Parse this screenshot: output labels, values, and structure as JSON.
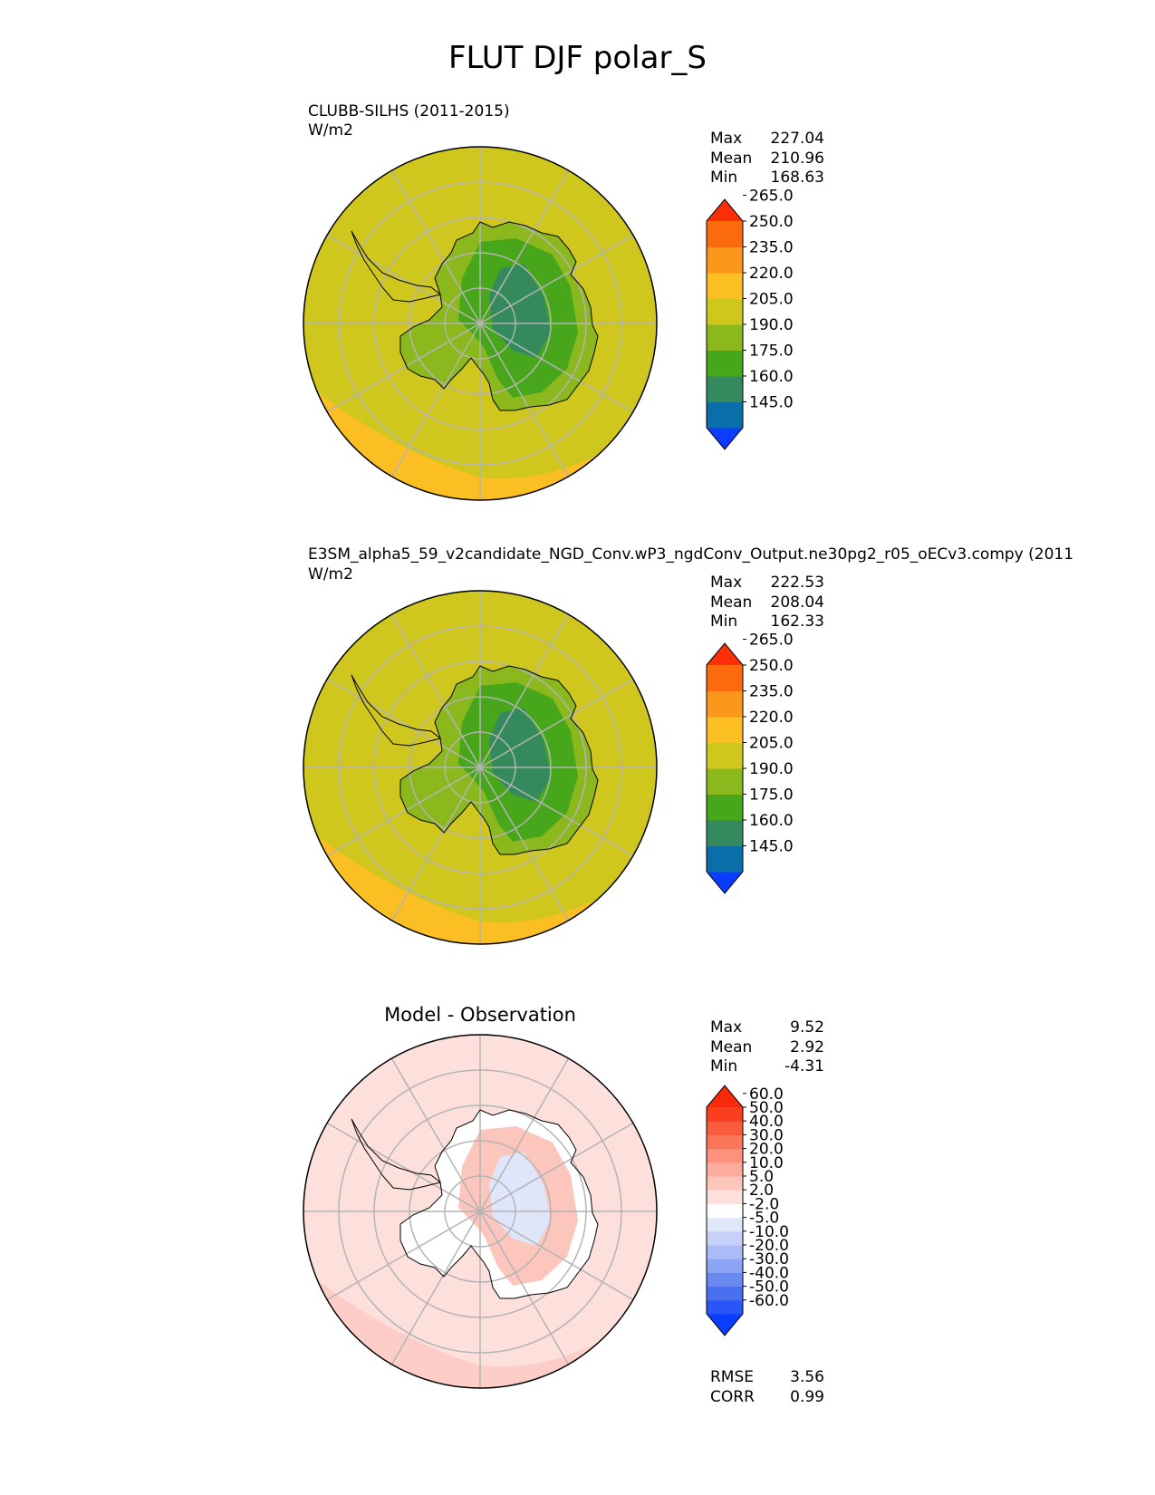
{
  "title": "FLUT DJF polar_S",
  "panels": [
    {
      "title": "CLUBB-SILHS (2011-2015)",
      "units": "W/m2",
      "stats": [
        [
          "Max",
          "227.04"
        ],
        [
          "Mean",
          "210.96"
        ],
        [
          "Min",
          "168.63"
        ]
      ],
      "colorbar": {
        "colors": [
          "#0a3dff",
          "#0a6ea8",
          "#348a5c",
          "#48a61a",
          "#8bb81c",
          "#cfc71e",
          "#fbbf23",
          "#fb971a",
          "#fb6a0d",
          "#fb3008"
        ],
        "labels": [
          "145.0",
          "160.0",
          "175.0",
          "190.0",
          "205.0",
          "220.0",
          "235.0",
          "250.0",
          "265.0"
        ]
      },
      "map": {
        "ocean_color": "#cfc71e",
        "warm_band_color": "#fbbf23",
        "inner_colors": [
          "#8bb81c",
          "#48a61a",
          "#348a5c"
        ]
      }
    },
    {
      "title": "E3SM_alpha5_59_v2candidate_NGD_Conv.wP3_ngdConv_Output.ne30pg2_r05_oECv3.compy (2011",
      "units": "W/m2",
      "stats": [
        [
          "Max",
          "222.53"
        ],
        [
          "Mean",
          "208.04"
        ],
        [
          "Min",
          "162.33"
        ]
      ],
      "colorbar": {
        "colors": [
          "#0a3dff",
          "#0a6ea8",
          "#348a5c",
          "#48a61a",
          "#8bb81c",
          "#cfc71e",
          "#fbbf23",
          "#fb971a",
          "#fb6a0d",
          "#fb3008"
        ],
        "labels": [
          "145.0",
          "160.0",
          "175.0",
          "190.0",
          "205.0",
          "220.0",
          "235.0",
          "250.0",
          "265.0"
        ]
      },
      "map": {
        "ocean_color": "#cfc71e",
        "warm_band_color": "#fbbf23",
        "inner_colors": [
          "#8bb81c",
          "#48a61a",
          "#348a5c"
        ]
      }
    },
    {
      "title": "Model - Observation",
      "units": "",
      "stats": [
        [
          "Max",
          "9.52"
        ],
        [
          "Mean",
          "2.92"
        ],
        [
          "Min",
          "-4.31"
        ]
      ],
      "extra_stats": [
        [
          "RMSE",
          "3.56"
        ],
        [
          "CORR",
          "0.99"
        ]
      ],
      "colorbar": {
        "colors": [
          "#0a3dff",
          "#2a56f7",
          "#4a70f0",
          "#6a8af2",
          "#8ba4f5",
          "#aabcf7",
          "#c6d0f8",
          "#e0e6fa",
          "#ffffff",
          "#fde0dc",
          "#fcc6bd",
          "#fcab9c",
          "#fc917c",
          "#fb765c",
          "#fa5a3d",
          "#f93f1f",
          "#f82a0a"
        ],
        "labels": [
          "-60.0",
          "-50.0",
          "-40.0",
          "-30.0",
          "-20.0",
          "-10.0",
          "-5.0",
          "-2.0",
          "2.0",
          "5.0",
          "10.0",
          "20.0",
          "30.0",
          "40.0",
          "50.0",
          "60.0"
        ]
      },
      "map": {
        "ocean_color": "#fde0dc",
        "warm_band_color": "#fcc6bd",
        "inner_colors": [
          "#ffffff",
          "#fcc6bd",
          "#e0e6fa"
        ]
      }
    }
  ]
}
